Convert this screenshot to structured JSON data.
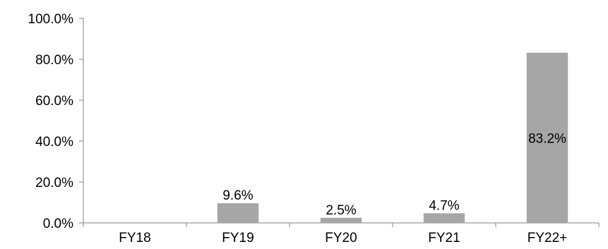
{
  "chart_data": {
    "type": "bar",
    "title": "",
    "xlabel": "",
    "ylabel": "",
    "categories": [
      "FY18",
      "FY19",
      "FY20",
      "FY21",
      "FY22+"
    ],
    "values": [
      0,
      9.6,
      2.5,
      4.7,
      83.2
    ],
    "data_labels": [
      "",
      "9.6%",
      "2.5%",
      "4.7%",
      "83.2%"
    ],
    "ylim": [
      0,
      100
    ],
    "y_ticks": [
      "0.0%",
      "20.0%",
      "40.0%",
      "60.0%",
      "80.0%",
      "100.0%"
    ],
    "y_tick_values": [
      0,
      20,
      40,
      60,
      80,
      100
    ],
    "grid": false,
    "legend": "none",
    "colors": {
      "bar": "#a6a6a6",
      "axis": "#808080",
      "text": "#000000"
    }
  }
}
